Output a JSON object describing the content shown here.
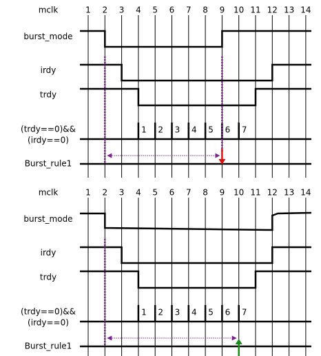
{
  "clock_numbers": [
    "1",
    "2",
    "3",
    "4",
    "5",
    "6",
    "7",
    "8",
    "9",
    "10",
    "11",
    "12",
    "13",
    "14"
  ],
  "colors": {
    "signal": "#000000",
    "marker": "#7a1f8c",
    "arrow_fail": "#e01010",
    "arrow_pass": "#1a8a1a",
    "grid": "#000000"
  },
  "panels": [
    {
      "name": "top-panel",
      "signals": [
        {
          "label": "mclk",
          "type": "header"
        },
        {
          "label": "burst_mode",
          "type": "wave",
          "transitions": [
            [
              1,
              "H"
            ],
            [
              2,
              "L"
            ],
            [
              9,
              "H"
            ]
          ]
        },
        {
          "label": "irdy",
          "type": "wave",
          "transitions": [
            [
              1,
              "H"
            ],
            [
              3,
              "L"
            ],
            [
              12,
              "H"
            ]
          ]
        },
        {
          "label": "trdy",
          "type": "wave",
          "transitions": [
            [
              1,
              "H"
            ],
            [
              4,
              "L"
            ],
            [
              11,
              "H"
            ]
          ]
        },
        {
          "label_lines": [
            "(trdy==0)&&",
            "(irdy==0)"
          ],
          "type": "count",
          "count_from": 4,
          "counts": [
            "1",
            "2",
            "3",
            "4",
            "5",
            "6",
            "7"
          ]
        },
        {
          "label": "Burst_rule1",
          "type": "rule",
          "start_clk": 2,
          "end_clk": 9,
          "result": "fail"
        }
      ]
    },
    {
      "name": "bottom-panel",
      "signals": [
        {
          "label": "mclk",
          "type": "header"
        },
        {
          "label": "burst_mode",
          "type": "wave",
          "transitions": [
            [
              1,
              "H"
            ],
            [
              2,
              "L"
            ],
            [
              12,
              "H"
            ]
          ]
        },
        {
          "label": "irdy",
          "type": "wave",
          "transitions": [
            [
              1,
              "H"
            ],
            [
              3,
              "L"
            ],
            [
              12,
              "H"
            ]
          ]
        },
        {
          "label": "trdy",
          "type": "wave",
          "transitions": [
            [
              1,
              "H"
            ],
            [
              4,
              "L"
            ],
            [
              11,
              "H"
            ]
          ]
        },
        {
          "label_lines": [
            "(trdy==0)&&",
            "(irdy==0)"
          ],
          "type": "count",
          "count_from": 4,
          "counts": [
            "1",
            "2",
            "3",
            "4",
            "5",
            "6",
            "7"
          ]
        },
        {
          "label": "Burst_rule1",
          "type": "rule",
          "start_clk": 2,
          "end_clk": 10,
          "result": "pass"
        }
      ]
    }
  ]
}
